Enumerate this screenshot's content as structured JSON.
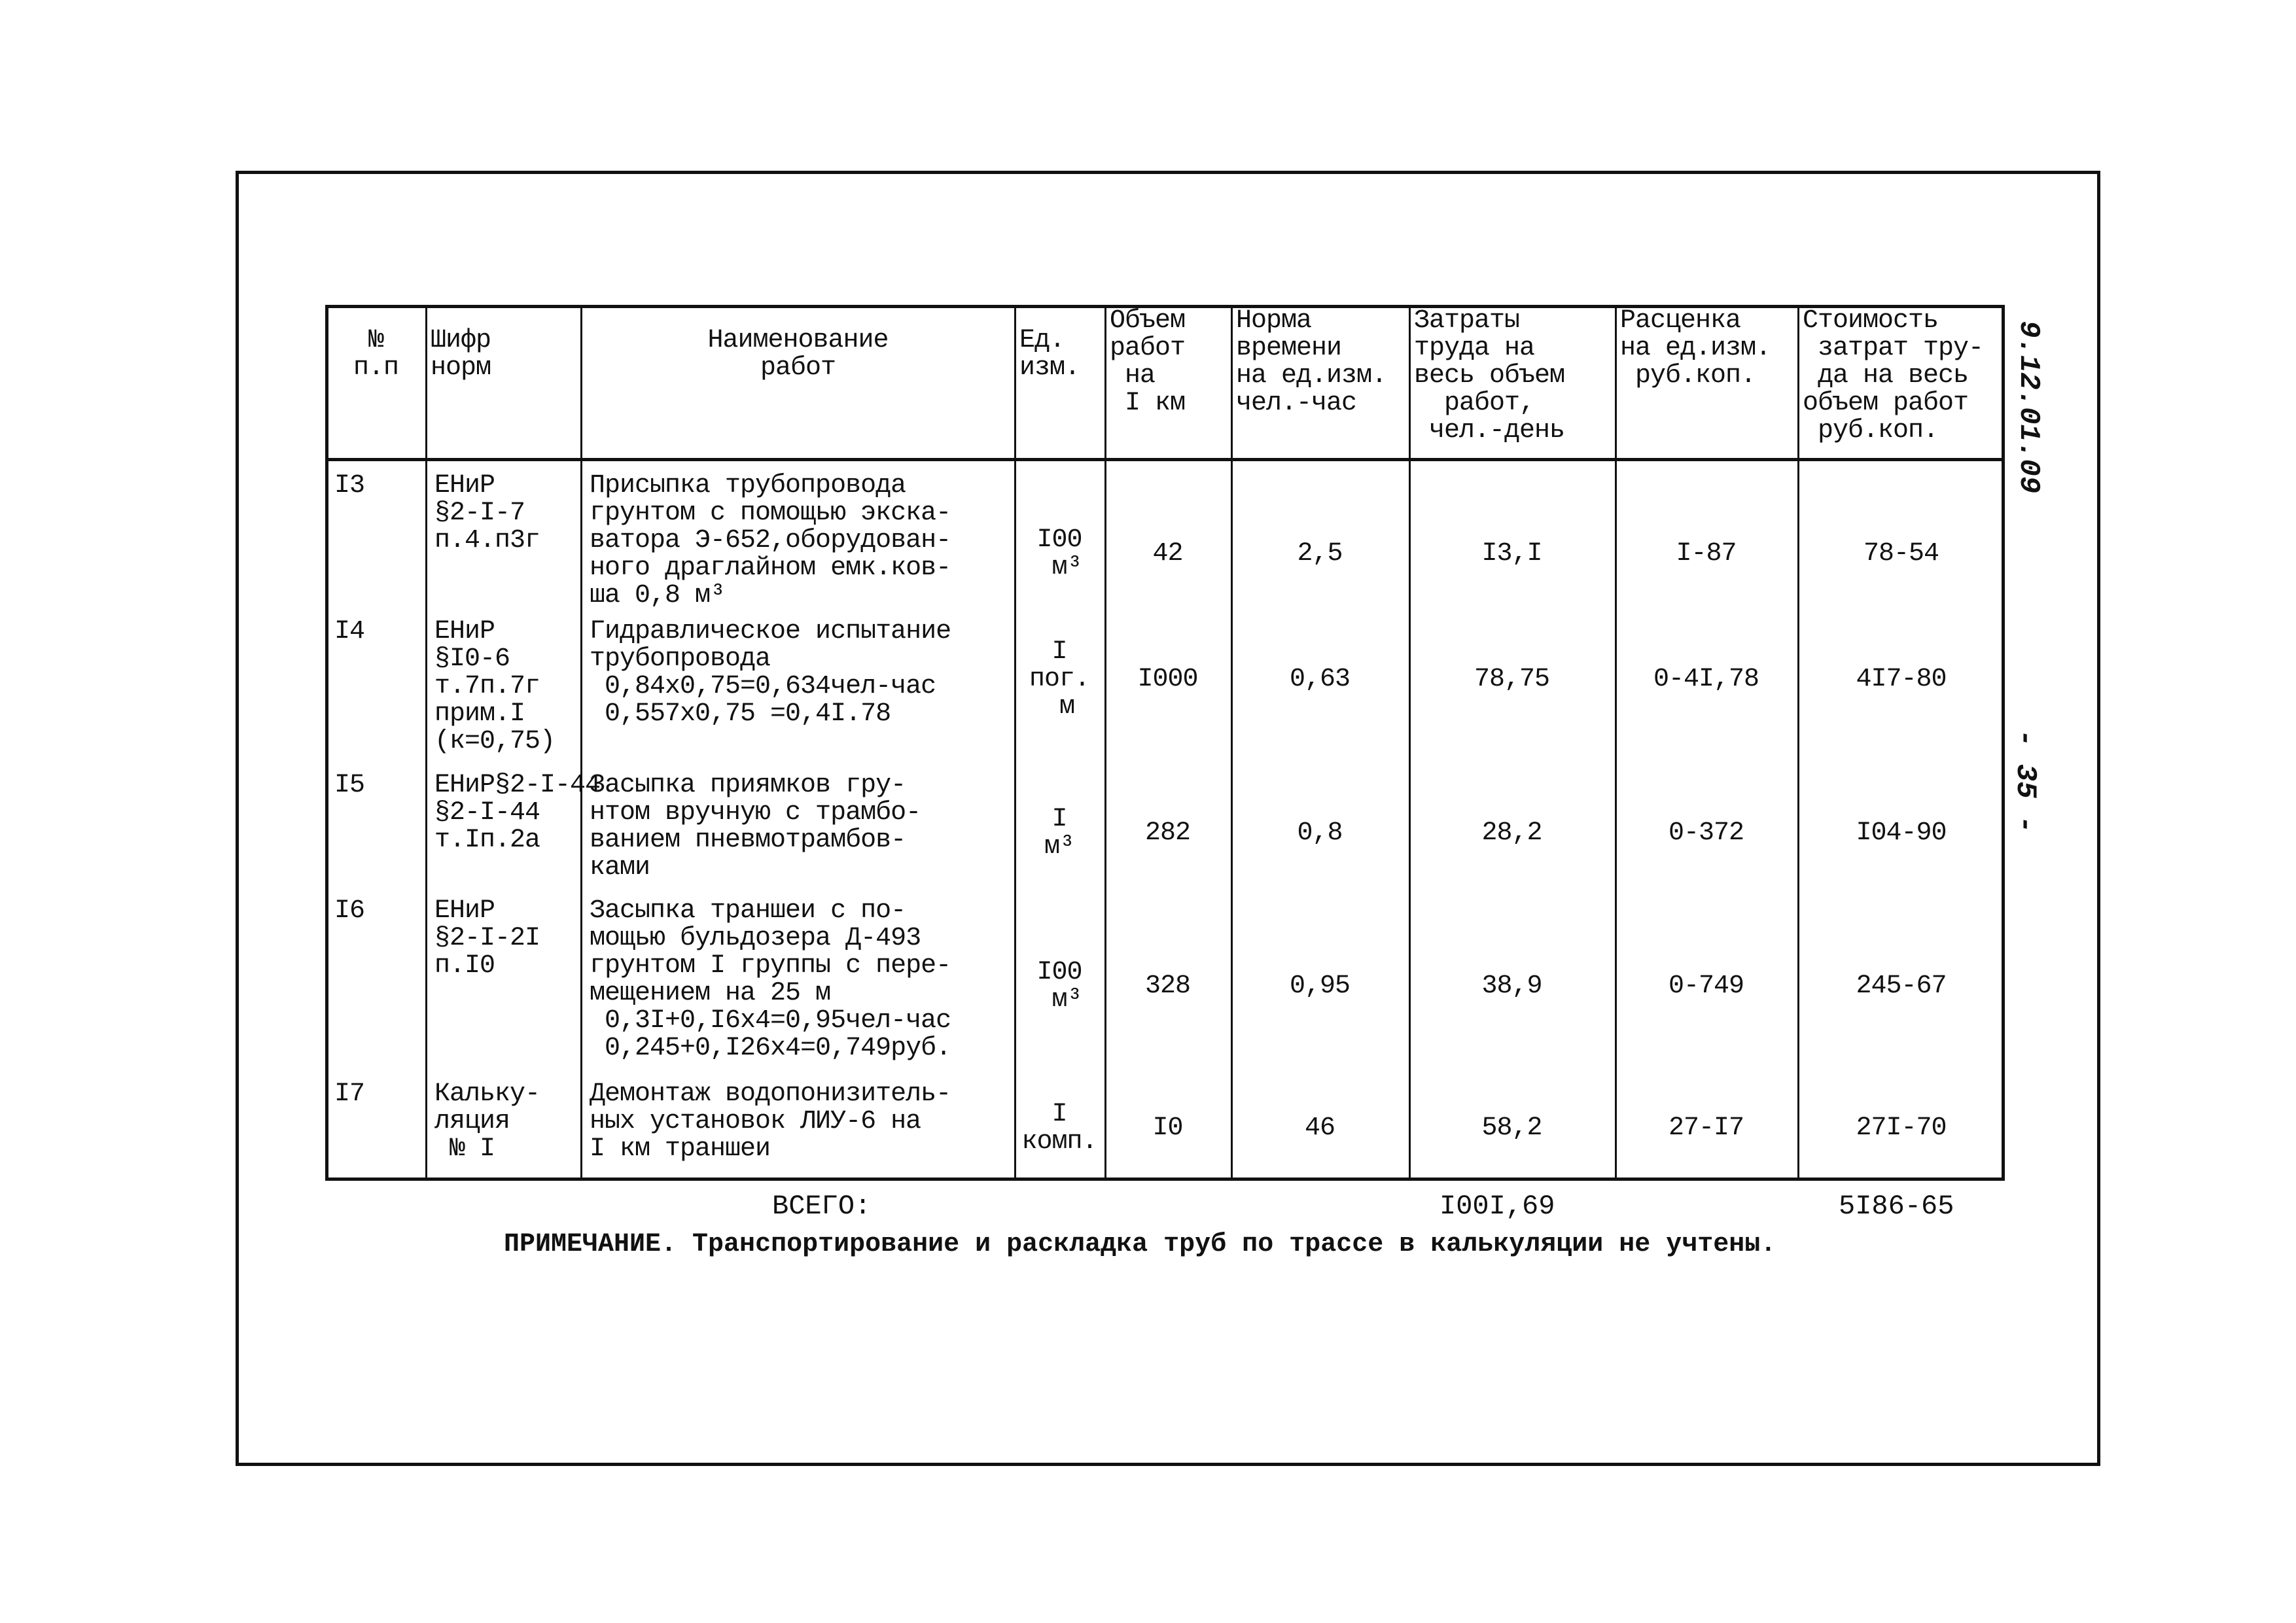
{
  "side_code": "9.12.01.09",
  "page_number": "- 35 -",
  "table": {
    "headers": [
      "№\nп.п",
      "Шифр\nнорм",
      "Наименование\nработ",
      "Ед.\nизм.",
      "Объем\nработ\n на\n I км",
      "Норма\nвремени\nна ед.изм.\nчел.-час",
      "Затраты\nтруда на\nвесь объем\n  работ,\n чел.-день",
      "Расценка\nна ед.изм.\n руб.коп.",
      "Стоимость\n затрат тру-\n да на весь\nобъем работ\n руб.коп."
    ],
    "rows": [
      [
        "I3",
        "ЕНиР\n§2-I-7\nп.4.п3г",
        "Присыпка трубопровода\nгрунтом с помощью экска-\nватора Э-652,оборудован-\nного драглайном емк.ков-\nша 0,8 м³",
        "I00\n м³",
        "42",
        "2,5",
        "I3,I",
        "I-87",
        "78-54"
      ],
      [
        "I4",
        "ЕНиР\n§I0-6\nт.7п.7г\nприм.I\n(к=0,75)",
        "Гидравлическое испытание\nтрубопровода\n 0,84х0,75=0,634чел-час\n 0,557х0,75 =0,4I.78",
        "I\nпог.\n м",
        "I000",
        "0,63",
        "78,75",
        "0-4I,78",
        "4I7-80"
      ],
      [
        "I5",
        "ЕНиР§2-I-44\n§2-I-44\nт.Iп.2а",
        "Засыпка приямков гру-\nнтом вручную с трамбо-\nванием пневмотрамбов-\nками",
        "I\nм³",
        "282",
        "0,8",
        "28,2",
        "0-372",
        "I04-90"
      ],
      [
        "I6",
        "ЕНиР\n§2-I-2I\nп.I0",
        "Засыпка траншеи с по-\nмощью бульдозера Д-493\nгрунтом I группы с пере-\nмещением на 25 м\n 0,3I+0,I6х4=0,95чел-час\n 0,245+0,I26х4=0,749руб.",
        "I00\n м³",
        "328",
        "0,95",
        "38,9",
        "0-749",
        "245-67"
      ],
      [
        "I7",
        "Кальку-\nляция\n № I",
        "Демонтаж водопонизитель-\nных установок ЛИУ-6 на\nI км траншеи",
        "I\nкомп.",
        "I0",
        "46",
        "58,2",
        "27-I7",
        "27I-70"
      ]
    ],
    "total_label": "ВСЕГО:",
    "total_labor": "I00I,69",
    "total_cost": "5I86-65"
  },
  "note": "ПРИМЕЧАНИЕ. Транспортирование и раскладка труб по трассе в калькуляции не учтены."
}
